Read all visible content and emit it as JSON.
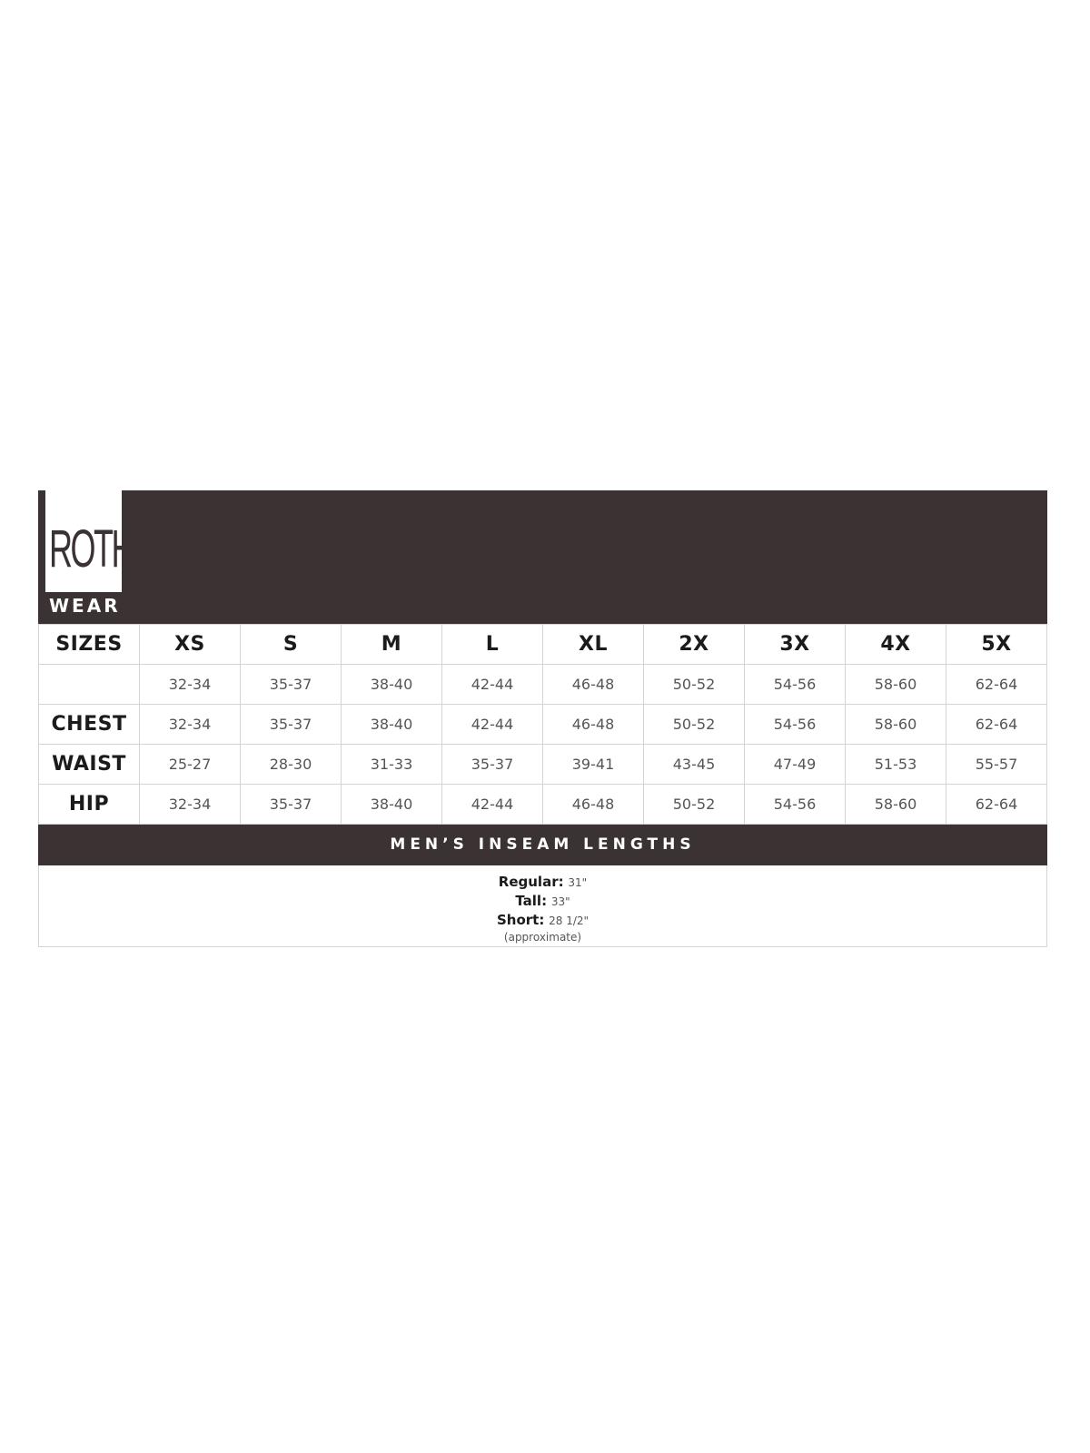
{
  "brand": {
    "logo_top": "ROTH",
    "logo_bottom": "WEAR"
  },
  "colors": {
    "banner": "#3b3233",
    "border": "#d4d4d4"
  },
  "table": {
    "header": [
      "SIZES",
      "XS",
      "S",
      "M",
      "L",
      "XL",
      "2X",
      "3X",
      "4X",
      "5X"
    ],
    "rows": [
      {
        "label": "",
        "values": [
          "32-34",
          "35-37",
          "38-40",
          "42-44",
          "46-48",
          "50-52",
          "54-56",
          "58-60",
          "62-64"
        ]
      },
      {
        "label": "CHEST",
        "values": [
          "32-34",
          "35-37",
          "38-40",
          "42-44",
          "46-48",
          "50-52",
          "54-56",
          "58-60",
          "62-64"
        ]
      },
      {
        "label": "WAIST",
        "values": [
          "25-27",
          "28-30",
          "31-33",
          "35-37",
          "39-41",
          "43-45",
          "47-49",
          "51-53",
          "55-57"
        ]
      },
      {
        "label": "HIP",
        "values": [
          "32-34",
          "35-37",
          "38-40",
          "42-44",
          "46-48",
          "50-52",
          "54-56",
          "58-60",
          "62-64"
        ]
      }
    ]
  },
  "inseam": {
    "title": "MEN’S INSEAM LENGTHS",
    "items": [
      {
        "label": "Regular:",
        "value": "31\""
      },
      {
        "label": "Tall:",
        "value": "33\""
      },
      {
        "label": "Short:",
        "value": "28 1/2\""
      }
    ],
    "note": "(approximate)"
  }
}
